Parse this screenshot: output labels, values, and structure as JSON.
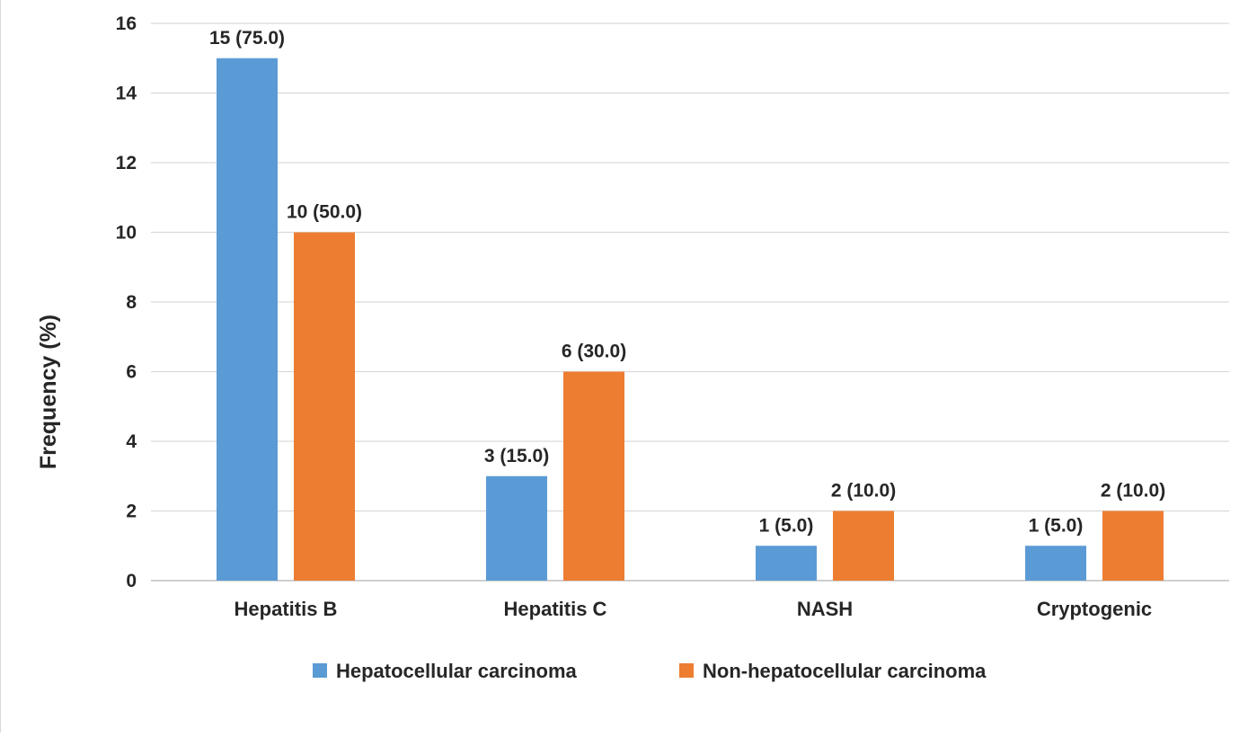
{
  "chart_data": {
    "type": "bar",
    "title": "",
    "xlabel": "",
    "ylabel": "Frequency (%)",
    "ylim": [
      0,
      16
    ],
    "yticks": [
      0,
      2,
      4,
      6,
      8,
      10,
      12,
      14,
      16
    ],
    "grid": true,
    "legend_position": "bottom",
    "categories": [
      "Hepatitis B",
      "Hepatitis C",
      "NASH",
      "Cryptogenic"
    ],
    "series": [
      {
        "name": "Hepatocellular carcinoma",
        "color": "#5b9bd5",
        "values": [
          15,
          3,
          1,
          1
        ],
        "labels": [
          "15 (75.0)",
          "3 (15.0)",
          "1 (5.0)",
          "1 (5.0)"
        ]
      },
      {
        "name": "Non-hepatocellular carcinoma",
        "color": "#ed7d31",
        "values": [
          10,
          6,
          2,
          2
        ],
        "labels": [
          "10 (50.0)",
          "6 (30.0)",
          "2 (10.0)",
          "2 (10.0)"
        ]
      }
    ]
  }
}
